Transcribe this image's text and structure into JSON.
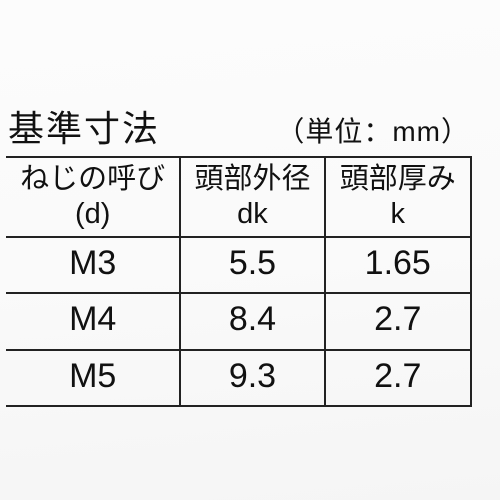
{
  "caption": {
    "title": "基準寸法",
    "unit_label": "（単位：mm）"
  },
  "table": {
    "type": "table",
    "background_color": "#fafafa",
    "border_color": "#222222",
    "text_color": "#111111",
    "header_fontsize_pt": 22,
    "cell_fontsize_pt": 25,
    "column_widths_pct": [
      37.5,
      31.0,
      31.5
    ],
    "columns": [
      {
        "label_line1": "ねじの呼び",
        "label_line2": "(d)",
        "align": "center"
      },
      {
        "label_line1": "頭部外径",
        "label_line2": "dk",
        "align": "center"
      },
      {
        "label_line1": "頭部厚み",
        "label_line2": "k",
        "align": "center"
      }
    ],
    "rows": [
      [
        "M3",
        "5.5",
        "1.65"
      ],
      [
        "M4",
        "8.4",
        "2.7"
      ],
      [
        "M5",
        "9.3",
        "2.7"
      ]
    ]
  }
}
